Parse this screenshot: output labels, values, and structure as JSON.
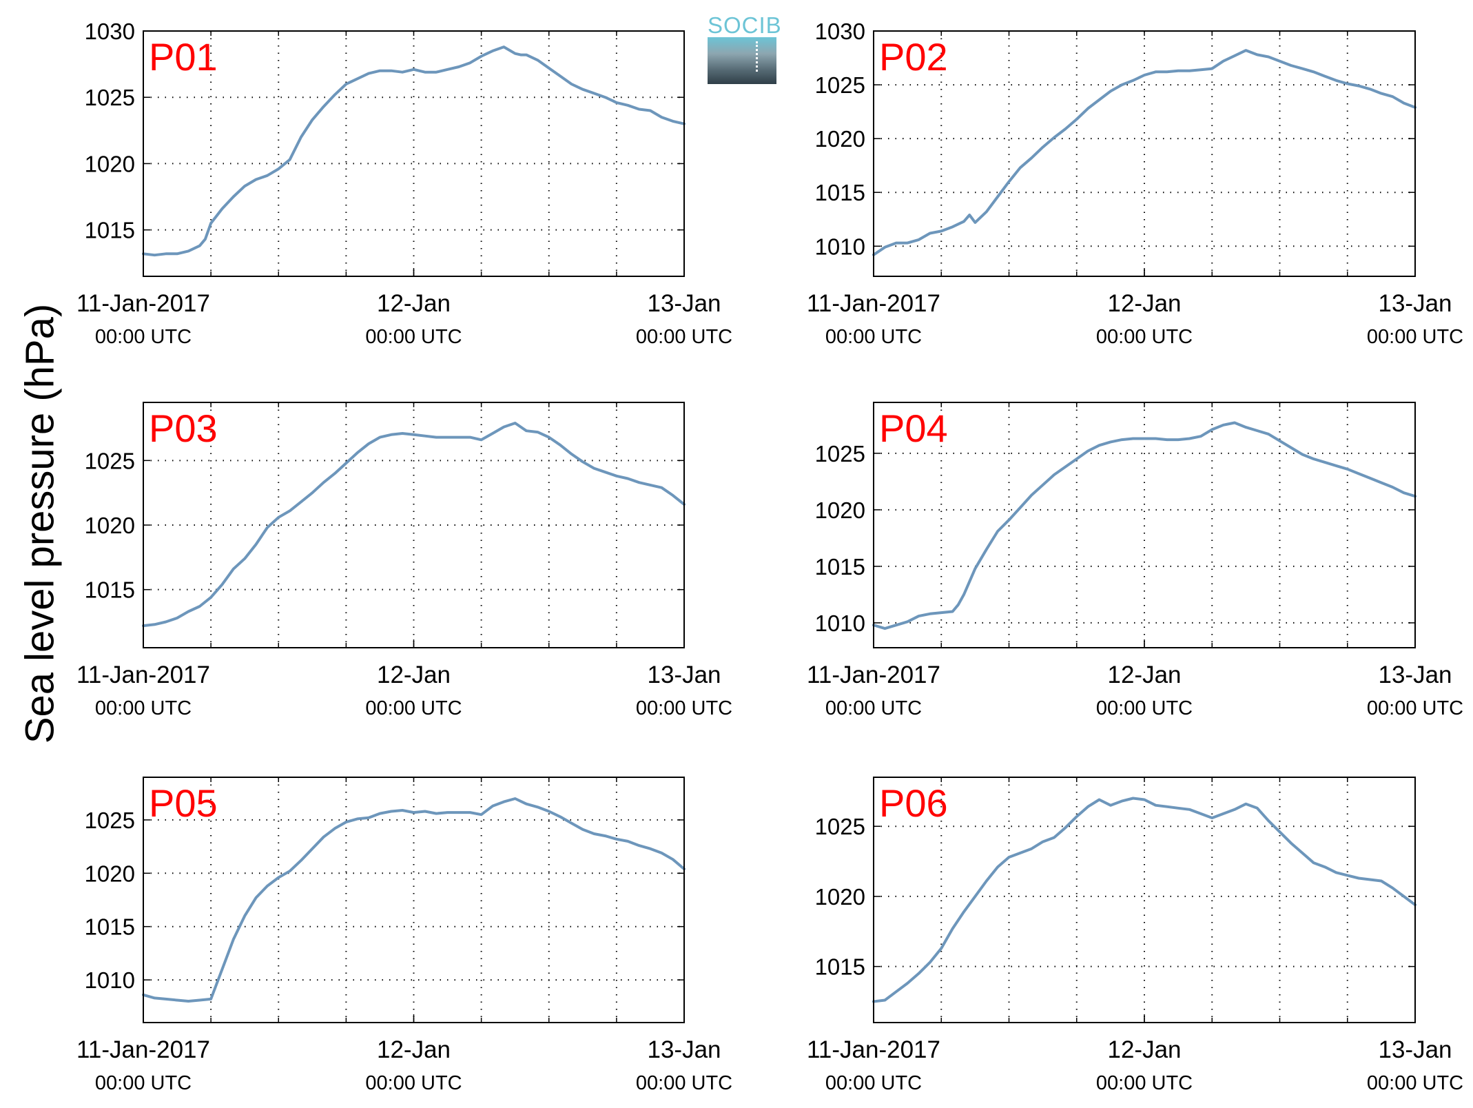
{
  "figure": {
    "ylabel": "Sea level pressure (hPa)",
    "logo_text": "SOCIB",
    "colors": {
      "line": "#6d96bb",
      "panel_label": "#ff0000",
      "axes": "#000000",
      "grid": "#000000"
    }
  },
  "chart_data": [
    {
      "type": "line",
      "title": "P01",
      "x_ticks": [
        {
          "hours": 0,
          "line1": "11-Jan-2017",
          "line2": "00:00 UTC"
        },
        {
          "hours": 24,
          "line1": "12-Jan",
          "line2": "00:00 UTC"
        },
        {
          "hours": 48,
          "line1": "13-Jan",
          "line2": "00:00 UTC"
        }
      ],
      "xlim": [
        0,
        48
      ],
      "ylim": [
        1011.5,
        1030
      ],
      "yticks": [
        1015,
        1020,
        1025,
        1030
      ],
      "grid": true,
      "series": [
        {
          "x": [
            0,
            1,
            2,
            3,
            4,
            5,
            5.5,
            6,
            7,
            8,
            9,
            10,
            11,
            12,
            13,
            14,
            15,
            16,
            17,
            18,
            19,
            20,
            21,
            22,
            23,
            24,
            25,
            26,
            27,
            28,
            29,
            30,
            31,
            32,
            33,
            33.5,
            34,
            35,
            36,
            37,
            38,
            39,
            40,
            41,
            42,
            43,
            44,
            45,
            46,
            47,
            48
          ],
          "y": [
            1013.2,
            1013.1,
            1013.2,
            1013.2,
            1013.4,
            1013.8,
            1014.3,
            1015.5,
            1016.6,
            1017.5,
            1018.3,
            1018.8,
            1019.1,
            1019.6,
            1020.3,
            1022,
            1023.3,
            1024.3,
            1025.2,
            1026,
            1026.4,
            1026.8,
            1027,
            1027,
            1026.9,
            1027.1,
            1026.9,
            1026.9,
            1027.1,
            1027.3,
            1027.6,
            1028.1,
            1028.5,
            1028.8,
            1028.3,
            1028.2,
            1028.2,
            1027.8,
            1027.2,
            1026.6,
            1026,
            1025.6,
            1025.3,
            1025,
            1024.6,
            1024.4,
            1024.1,
            1024,
            1023.5,
            1023.2,
            1023
          ]
        }
      ]
    },
    {
      "type": "line",
      "title": "P02",
      "x_ticks": [
        {
          "hours": 0,
          "line1": "11-Jan-2017",
          "line2": "00:00 UTC"
        },
        {
          "hours": 24,
          "line1": "12-Jan",
          "line2": "00:00 UTC"
        },
        {
          "hours": 48,
          "line1": "13-Jan",
          "line2": "00:00 UTC"
        }
      ],
      "xlim": [
        0,
        48
      ],
      "ylim": [
        1007.2,
        1030
      ],
      "yticks": [
        1010,
        1015,
        1020,
        1025,
        1030
      ],
      "grid": true,
      "series": [
        {
          "x": [
            0,
            1,
            2,
            3,
            4,
            5,
            6,
            7,
            8,
            8.5,
            9,
            10,
            11,
            12,
            13,
            14,
            15,
            16,
            17,
            18,
            19,
            20,
            21,
            22,
            23,
            24,
            25,
            26,
            27,
            28,
            29,
            30,
            31,
            32,
            33,
            34,
            35,
            36,
            37,
            38,
            39,
            40,
            41,
            42,
            43,
            44,
            45,
            46,
            47,
            48
          ],
          "y": [
            1009.2,
            1009.9,
            1010.3,
            1010.3,
            1010.6,
            1011.2,
            1011.4,
            1011.8,
            1012.3,
            1012.9,
            1012.2,
            1013.2,
            1014.6,
            1016,
            1017.3,
            1018.2,
            1019.2,
            1020.1,
            1020.9,
            1021.8,
            1022.8,
            1023.6,
            1024.4,
            1025,
            1025.4,
            1025.9,
            1026.2,
            1026.2,
            1026.3,
            1026.3,
            1026.4,
            1026.5,
            1027.2,
            1027.7,
            1028.2,
            1027.8,
            1027.6,
            1027.2,
            1026.8,
            1026.5,
            1026.2,
            1025.8,
            1025.4,
            1025.1,
            1024.9,
            1024.6,
            1024.2,
            1023.9,
            1023.3,
            1022.9
          ]
        }
      ]
    },
    {
      "type": "line",
      "title": "P03",
      "x_ticks": [
        {
          "hours": 0,
          "line1": "11-Jan-2017",
          "line2": "00:00 UTC"
        },
        {
          "hours": 24,
          "line1": "12-Jan",
          "line2": "00:00 UTC"
        },
        {
          "hours": 48,
          "line1": "13-Jan",
          "line2": "00:00 UTC"
        }
      ],
      "xlim": [
        0,
        48
      ],
      "ylim": [
        1010.5,
        1029.5
      ],
      "yticks": [
        1015,
        1020,
        1025
      ],
      "grid": true,
      "series": [
        {
          "x": [
            0,
            1,
            2,
            3,
            4,
            5,
            6,
            7,
            8,
            9,
            10,
            11,
            12,
            13,
            14,
            15,
            16,
            17,
            18,
            19,
            20,
            21,
            22,
            23,
            24,
            25,
            26,
            27,
            28,
            29,
            30,
            31,
            32,
            33,
            34,
            35,
            36,
            37,
            38,
            39,
            40,
            41,
            42,
            43,
            44,
            45,
            46,
            47,
            48
          ],
          "y": [
            1012.2,
            1012.3,
            1012.5,
            1012.8,
            1013.3,
            1013.7,
            1014.4,
            1015.4,
            1016.6,
            1017.4,
            1018.5,
            1019.8,
            1020.6,
            1021.1,
            1021.8,
            1022.5,
            1023.3,
            1024,
            1024.8,
            1025.6,
            1026.3,
            1026.8,
            1027,
            1027.1,
            1027,
            1026.9,
            1026.8,
            1026.8,
            1026.8,
            1026.8,
            1026.6,
            1027.1,
            1027.6,
            1027.9,
            1027.3,
            1027.2,
            1026.8,
            1026.2,
            1025.5,
            1024.9,
            1024.4,
            1024.1,
            1023.8,
            1023.6,
            1023.3,
            1023.1,
            1022.9,
            1022.3,
            1021.6
          ]
        }
      ]
    },
    {
      "type": "line",
      "title": "P04",
      "x_ticks": [
        {
          "hours": 0,
          "line1": "11-Jan-2017",
          "line2": "00:00 UTC"
        },
        {
          "hours": 24,
          "line1": "12-Jan",
          "line2": "00:00 UTC"
        },
        {
          "hours": 48,
          "line1": "13-Jan",
          "line2": "00:00 UTC"
        }
      ],
      "xlim": [
        0,
        48
      ],
      "ylim": [
        1007.8,
        1029.5
      ],
      "yticks": [
        1010,
        1015,
        1020,
        1025
      ],
      "grid": true,
      "series": [
        {
          "x": [
            0,
            1,
            2,
            3,
            4,
            5,
            6,
            7,
            7.5,
            8,
            9,
            10,
            11,
            12,
            13,
            14,
            15,
            16,
            17,
            18,
            19,
            20,
            21,
            22,
            23,
            24,
            25,
            26,
            27,
            28,
            29,
            30,
            31,
            32,
            33,
            34,
            35,
            36,
            37,
            38,
            39,
            40,
            41,
            42,
            43,
            44,
            45,
            46,
            47,
            48
          ],
          "y": [
            1009.8,
            1009.5,
            1009.8,
            1010.1,
            1010.6,
            1010.8,
            1010.9,
            1011,
            1011.6,
            1012.5,
            1014.8,
            1016.5,
            1018.1,
            1019.1,
            1020.2,
            1021.3,
            1022.2,
            1023.1,
            1023.8,
            1024.5,
            1025.2,
            1025.7,
            1026,
            1026.2,
            1026.3,
            1026.3,
            1026.3,
            1026.2,
            1026.2,
            1026.3,
            1026.5,
            1027.1,
            1027.5,
            1027.7,
            1027.3,
            1027,
            1026.7,
            1026.1,
            1025.5,
            1024.9,
            1024.5,
            1024.2,
            1023.9,
            1023.6,
            1023.2,
            1022.8,
            1022.4,
            1022,
            1021.5,
            1021.2
          ]
        }
      ]
    },
    {
      "type": "line",
      "title": "P05",
      "x_ticks": [
        {
          "hours": 0,
          "line1": "11-Jan-2017",
          "line2": "00:00 UTC"
        },
        {
          "hours": 24,
          "line1": "12-Jan",
          "line2": "00:00 UTC"
        },
        {
          "hours": 48,
          "line1": "13-Jan",
          "line2": "00:00 UTC"
        }
      ],
      "xlim": [
        0,
        48
      ],
      "ylim": [
        1006,
        1029
      ],
      "yticks": [
        1010,
        1015,
        1020,
        1025
      ],
      "grid": true,
      "series": [
        {
          "x": [
            0,
            1,
            2,
            3,
            4,
            5,
            6,
            7,
            8,
            9,
            10,
            11,
            12,
            13,
            14,
            15,
            16,
            17,
            18,
            19,
            20,
            21,
            22,
            23,
            24,
            25,
            26,
            27,
            28,
            29,
            30,
            31,
            32,
            33,
            34,
            35,
            36,
            37,
            38,
            39,
            40,
            41,
            42,
            43,
            44,
            45,
            46,
            47,
            48
          ],
          "y": [
            1008.6,
            1008.3,
            1008.2,
            1008.1,
            1008,
            1008.1,
            1008.2,
            1011,
            1013.8,
            1016,
            1017.7,
            1018.8,
            1019.6,
            1020.2,
            1021.2,
            1022.3,
            1023.4,
            1024.2,
            1024.8,
            1025.1,
            1025.2,
            1025.6,
            1025.8,
            1025.9,
            1025.7,
            1025.8,
            1025.6,
            1025.7,
            1025.7,
            1025.7,
            1025.5,
            1026.3,
            1026.7,
            1027,
            1026.5,
            1026.2,
            1025.8,
            1025.3,
            1024.7,
            1024.1,
            1023.7,
            1023.5,
            1023.2,
            1023,
            1022.6,
            1022.3,
            1021.9,
            1021.3,
            1020.4
          ]
        }
      ]
    },
    {
      "type": "line",
      "title": "P06",
      "x_ticks": [
        {
          "hours": 0,
          "line1": "11-Jan-2017",
          "line2": "00:00 UTC"
        },
        {
          "hours": 24,
          "line1": "12-Jan",
          "line2": "00:00 UTC"
        },
        {
          "hours": 48,
          "line1": "13-Jan",
          "line2": "00:00 UTC"
        }
      ],
      "xlim": [
        0,
        48
      ],
      "ylim": [
        1011,
        1028.5
      ],
      "yticks": [
        1015,
        1020,
        1025
      ],
      "grid": true,
      "series": [
        {
          "x": [
            0,
            1,
            2,
            3,
            4,
            5,
            6,
            7,
            8,
            9,
            10,
            11,
            12,
            13,
            14,
            15,
            16,
            17,
            18,
            19,
            20,
            21,
            22,
            23,
            24,
            25,
            26,
            27,
            28,
            29,
            30,
            31,
            32,
            33,
            34,
            35,
            36,
            37,
            38,
            39,
            40,
            41,
            42,
            43,
            44,
            45,
            46,
            47,
            48
          ],
          "y": [
            1012.5,
            1012.6,
            1013.2,
            1013.8,
            1014.5,
            1015.3,
            1016.3,
            1017.7,
            1018.9,
            1020,
            1021.1,
            1022.1,
            1022.8,
            1023.1,
            1023.4,
            1023.9,
            1024.2,
            1024.9,
            1025.7,
            1026.4,
            1026.9,
            1026.5,
            1026.8,
            1027,
            1026.9,
            1026.5,
            1026.4,
            1026.3,
            1026.2,
            1025.9,
            1025.6,
            1025.9,
            1026.2,
            1026.6,
            1026.3,
            1025.4,
            1024.6,
            1023.8,
            1023.1,
            1022.4,
            1022.1,
            1021.7,
            1021.5,
            1021.3,
            1021.2,
            1021.1,
            1020.6,
            1020,
            1019.4
          ]
        }
      ]
    }
  ]
}
